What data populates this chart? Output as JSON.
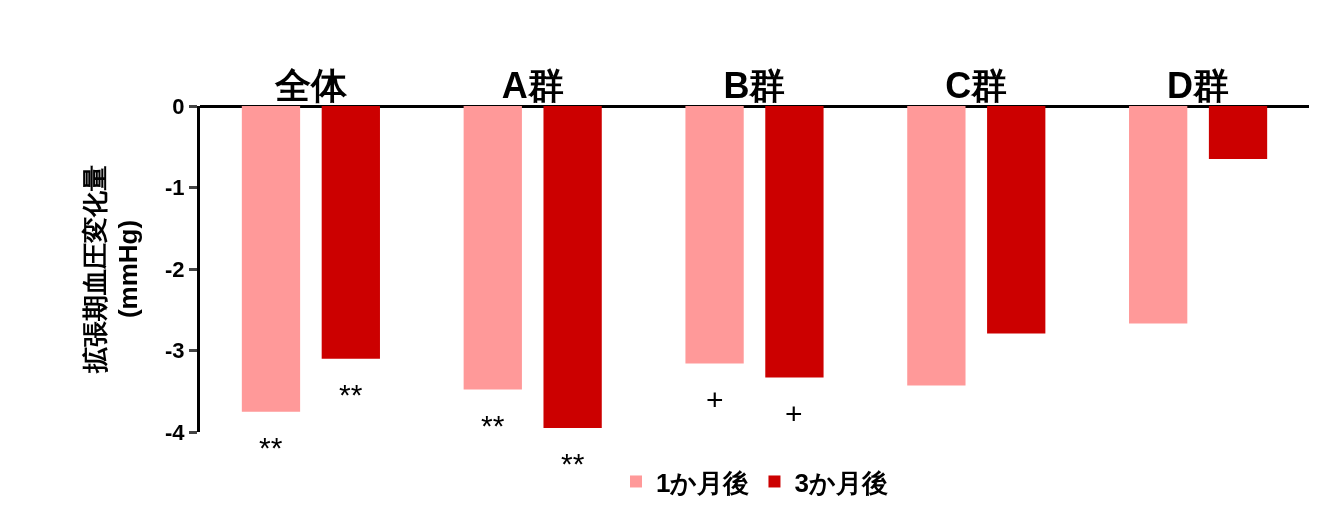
{
  "chart_data": {
    "type": "bar",
    "ylabel": "拡張期血圧変化量\n(mmHg)",
    "categories": [
      "全体",
      "A群",
      "B群",
      "C群",
      "D群"
    ],
    "series": [
      {
        "name": "1か月後",
        "color": "#ff9999",
        "values": [
          -3.75,
          -3.48,
          -3.16,
          -3.43,
          -2.67
        ]
      },
      {
        "name": "3か月後",
        "color": "#cc0000",
        "values": [
          -3.1,
          -3.95,
          -3.33,
          -2.79,
          -0.65
        ]
      }
    ],
    "ylim": [
      -4,
      0
    ],
    "yticks": [
      -4,
      -3,
      -2,
      -1,
      0
    ],
    "grid": false,
    "legend": "bottom",
    "annotations": [
      "**",
      "**",
      "**",
      "**",
      "+",
      "+"
    ]
  }
}
